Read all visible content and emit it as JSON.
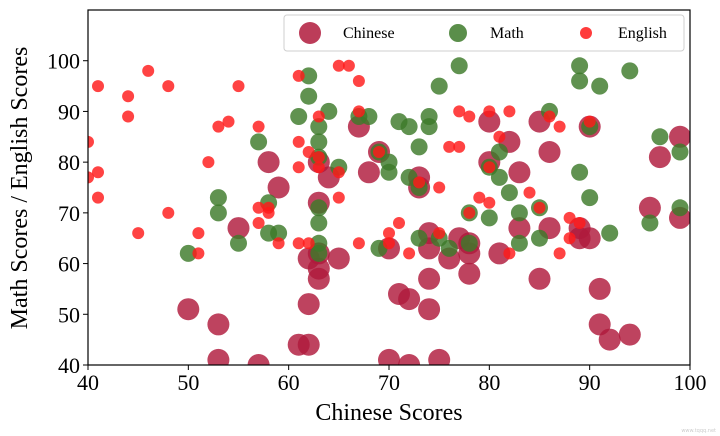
{
  "chart_data": {
    "type": "scatter",
    "xlabel": "Chinese Scores",
    "ylabel": "Math Scores / English Scores",
    "xlim": [
      40,
      100
    ],
    "ylim": [
      40,
      110
    ],
    "xticks": [
      40,
      50,
      60,
      70,
      80,
      90,
      100
    ],
    "yticks": [
      40,
      50,
      60,
      70,
      80,
      90,
      100
    ],
    "grid": false,
    "legend_position": "top-right",
    "watermark": "www.tqqq.net",
    "series": [
      {
        "name": "Chinese",
        "color": "#b01a3c",
        "marker_size": "large",
        "points": [
          [
            50,
            51
          ],
          [
            53,
            48
          ],
          [
            53,
            41
          ],
          [
            55,
            67
          ],
          [
            57,
            40
          ],
          [
            58,
            80
          ],
          [
            59,
            75
          ],
          [
            61,
            44
          ],
          [
            62,
            44
          ],
          [
            62,
            52
          ],
          [
            62,
            61
          ],
          [
            63,
            57
          ],
          [
            63,
            59
          ],
          [
            63,
            62
          ],
          [
            63,
            72
          ],
          [
            63,
            80
          ],
          [
            64,
            77
          ],
          [
            65,
            61
          ],
          [
            67,
            87
          ],
          [
            68,
            78
          ],
          [
            69,
            82
          ],
          [
            70,
            41
          ],
          [
            70,
            63
          ],
          [
            71,
            54
          ],
          [
            72,
            40
          ],
          [
            72,
            53
          ],
          [
            73,
            75
          ],
          [
            73,
            77
          ],
          [
            74,
            51
          ],
          [
            74,
            57
          ],
          [
            74,
            63
          ],
          [
            74,
            66
          ],
          [
            75,
            41
          ],
          [
            76,
            61
          ],
          [
            77,
            65
          ],
          [
            78,
            58
          ],
          [
            78,
            62
          ],
          [
            78,
            64
          ],
          [
            80,
            80
          ],
          [
            80,
            88
          ],
          [
            81,
            62
          ],
          [
            82,
            84
          ],
          [
            83,
            67
          ],
          [
            83,
            78
          ],
          [
            85,
            57
          ],
          [
            85,
            88
          ],
          [
            86,
            67
          ],
          [
            86,
            82
          ],
          [
            89,
            65
          ],
          [
            89,
            67
          ],
          [
            90,
            65
          ],
          [
            90,
            87
          ],
          [
            91,
            48
          ],
          [
            91,
            55
          ],
          [
            92,
            45
          ],
          [
            94,
            46
          ],
          [
            96,
            71
          ],
          [
            97,
            81
          ],
          [
            99,
            69
          ],
          [
            99,
            85
          ]
        ]
      },
      {
        "name": "Math",
        "color": "#3d7a2a",
        "marker_size": "medium",
        "points": [
          [
            50,
            62
          ],
          [
            53,
            70
          ],
          [
            53,
            73
          ],
          [
            55,
            64
          ],
          [
            57,
            84
          ],
          [
            58,
            66
          ],
          [
            58,
            72
          ],
          [
            59,
            66
          ],
          [
            61,
            89
          ],
          [
            62,
            97
          ],
          [
            62,
            93
          ],
          [
            63,
            62
          ],
          [
            63,
            64
          ],
          [
            63,
            68
          ],
          [
            63,
            71
          ],
          [
            63,
            81
          ],
          [
            63,
            84
          ],
          [
            63,
            87
          ],
          [
            64,
            90
          ],
          [
            65,
            79
          ],
          [
            67,
            89
          ],
          [
            68,
            89
          ],
          [
            69,
            82
          ],
          [
            69,
            63
          ],
          [
            70,
            78
          ],
          [
            70,
            80
          ],
          [
            71,
            88
          ],
          [
            72,
            77
          ],
          [
            72,
            87
          ],
          [
            73,
            65
          ],
          [
            73,
            75
          ],
          [
            73,
            83
          ],
          [
            74,
            87
          ],
          [
            74,
            89
          ],
          [
            75,
            65
          ],
          [
            75,
            95
          ],
          [
            76,
            63
          ],
          [
            77,
            99
          ],
          [
            78,
            64
          ],
          [
            78,
            70
          ],
          [
            80,
            69
          ],
          [
            80,
            79
          ],
          [
            81,
            77
          ],
          [
            81,
            82
          ],
          [
            82,
            74
          ],
          [
            83,
            70
          ],
          [
            83,
            64
          ],
          [
            85,
            65
          ],
          [
            85,
            71
          ],
          [
            86,
            90
          ],
          [
            89,
            99
          ],
          [
            89,
            96
          ],
          [
            89,
            78
          ],
          [
            90,
            87
          ],
          [
            90,
            73
          ],
          [
            91,
            95
          ],
          [
            92,
            66
          ],
          [
            94,
            98
          ],
          [
            96,
            68
          ],
          [
            97,
            85
          ],
          [
            99,
            82
          ],
          [
            99,
            71
          ]
        ]
      },
      {
        "name": "English",
        "color": "#ff1a1a",
        "marker_size": "small",
        "points": [
          [
            40,
            84
          ],
          [
            40,
            77
          ],
          [
            41,
            95
          ],
          [
            41,
            78
          ],
          [
            41,
            73
          ],
          [
            44,
            93
          ],
          [
            44,
            89
          ],
          [
            45,
            66
          ],
          [
            46,
            98
          ],
          [
            48,
            95
          ],
          [
            48,
            70
          ],
          [
            51,
            66
          ],
          [
            51,
            62
          ],
          [
            52,
            80
          ],
          [
            53,
            87
          ],
          [
            54,
            88
          ],
          [
            55,
            95
          ],
          [
            57,
            87
          ],
          [
            57,
            71
          ],
          [
            57,
            68
          ],
          [
            58,
            71
          ],
          [
            58,
            70
          ],
          [
            59,
            64
          ],
          [
            61,
            97
          ],
          [
            61,
            84
          ],
          [
            61,
            79
          ],
          [
            61,
            64
          ],
          [
            62,
            82
          ],
          [
            62,
            64
          ],
          [
            63,
            89
          ],
          [
            63,
            81
          ],
          [
            63,
            79
          ],
          [
            65,
            99
          ],
          [
            65,
            78
          ],
          [
            65,
            73
          ],
          [
            66,
            99
          ],
          [
            67,
            96
          ],
          [
            67,
            90
          ],
          [
            67,
            64
          ],
          [
            69,
            82
          ],
          [
            70,
            66
          ],
          [
            70,
            64
          ],
          [
            71,
            68
          ],
          [
            72,
            62
          ],
          [
            73,
            76
          ],
          [
            75,
            75
          ],
          [
            75,
            66
          ],
          [
            76,
            83
          ],
          [
            77,
            90
          ],
          [
            77,
            83
          ],
          [
            78,
            89
          ],
          [
            78,
            70
          ],
          [
            79,
            73
          ],
          [
            80,
            90
          ],
          [
            80,
            79
          ],
          [
            80,
            72
          ],
          [
            81,
            85
          ],
          [
            82,
            90
          ],
          [
            82,
            62
          ],
          [
            84,
            74
          ],
          [
            85,
            71
          ],
          [
            86,
            89
          ],
          [
            87,
            87
          ],
          [
            87,
            62
          ],
          [
            88,
            69
          ],
          [
            88,
            65
          ],
          [
            89,
            68
          ],
          [
            90,
            88
          ]
        ]
      }
    ]
  }
}
